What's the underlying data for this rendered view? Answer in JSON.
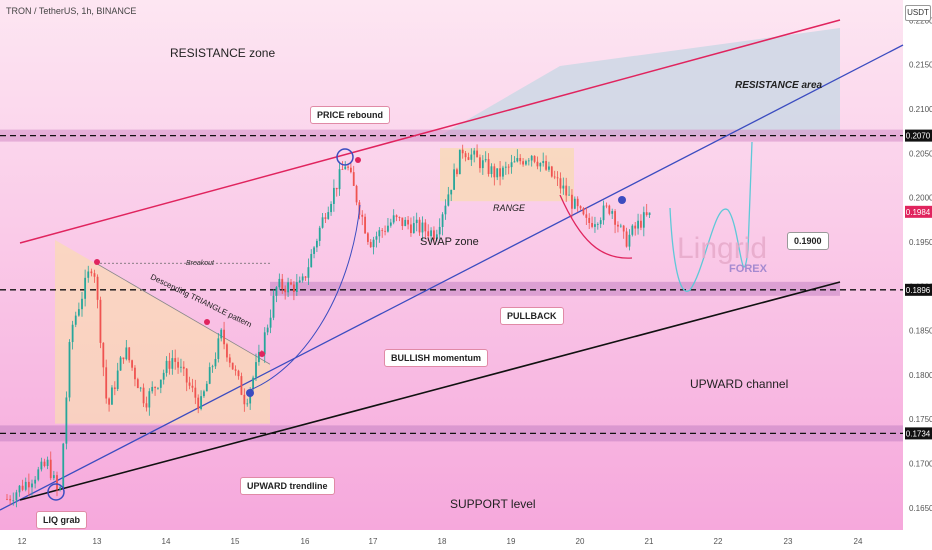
{
  "header": {
    "symbol": "TRON / TetherUS, 1h, BINANCE",
    "currency": "USDT"
  },
  "chart_data": {
    "type": "candlestick",
    "ylim": [
      0.1625,
      0.2223
    ],
    "y_ticks": [
      "0.2200",
      "0.2150",
      "0.2100",
      "0.2050",
      "0.2000",
      "0.1950",
      "0.1900",
      "0.1850",
      "0.1800",
      "0.1750",
      "0.1700",
      "0.1650"
    ],
    "x_ticks": [
      "12",
      "13",
      "14",
      "15",
      "16",
      "17",
      "18",
      "19",
      "20",
      "21",
      "22",
      "23",
      "24"
    ],
    "price_tags": [
      {
        "label": "0.2070",
        "value": 0.207,
        "bg": "#111111",
        "fg": "#ffffff"
      },
      {
        "label": "0.1984",
        "value": 0.1984,
        "bg": "#e0245e",
        "fg": "#ffffff"
      },
      {
        "label": "0.1896",
        "value": 0.1896,
        "bg": "#111111",
        "fg": "#ffffff"
      },
      {
        "label": "0.1734",
        "value": 0.1734,
        "bg": "#111111",
        "fg": "#ffffff"
      }
    ],
    "horizontal_levels": [
      0.207,
      0.1896,
      0.1734
    ],
    "target_label": "0.1900",
    "annotations": {
      "resistance_zone": "RESISTANCE zone",
      "resistance_area": "RESISTANCE area",
      "price_rebound": "PRICE rebound",
      "breakout": "Breakout",
      "triangle": "Descending TRIANGLE pattern",
      "swap_zone": "SWAP zone",
      "range": "RANGE",
      "pullback": "PULLBACK",
      "bullish_momentum": "BULLISH momentum",
      "upward_channel": "UPWARD channel",
      "upward_trendline": "UPWARD trendline",
      "support_level": "SUPPORT level",
      "liq_grab": "LIQ grab"
    },
    "watermark": {
      "name": "Lingrid",
      "sub": "FOREX"
    },
    "colors": {
      "up": "#26a69a",
      "down": "#ef5350",
      "resistance_line": "#e0245e",
      "channel_line": "#3b4cc0",
      "support_line": "#111111",
      "projection": "#5ec8d8"
    }
  }
}
